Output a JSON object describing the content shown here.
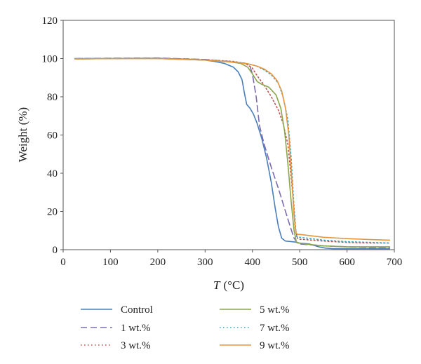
{
  "chart_data": {
    "type": "line",
    "xlabel": {
      "italic": "T",
      "rest": "(°C)"
    },
    "ylabel": "Weight (%)",
    "xlim": [
      0,
      700
    ],
    "ylim": [
      0,
      120
    ],
    "xticks": [
      0,
      100,
      200,
      300,
      400,
      500,
      600,
      700
    ],
    "yticks": [
      0,
      20,
      40,
      60,
      80,
      100,
      120
    ],
    "grid": false,
    "legend_placement": "bottom",
    "series": [
      {
        "name": "Control",
        "color": "#4a7ebb",
        "style": "solid",
        "x": [
          25,
          100,
          200,
          300,
          320,
          340,
          360,
          370,
          378,
          383,
          388,
          395,
          402,
          410,
          420,
          430,
          440,
          448,
          455,
          462,
          470,
          490,
          500,
          520,
          540,
          555,
          570,
          600,
          650,
          690
        ],
        "y": [
          99.8,
          100,
          100.2,
          99.2,
          98.5,
          97.5,
          95.5,
          93,
          89,
          82,
          76,
          74,
          71,
          66,
          58,
          48,
          35,
          22,
          12,
          6,
          4.5,
          4,
          3.5,
          3,
          1.5,
          0.8,
          0.5,
          0.5,
          0.5,
          0.5
        ]
      },
      {
        "name": "1 wt.%",
        "color": "#7d6bb0",
        "style": "dashed",
        "x": [
          25,
          100,
          200,
          300,
          350,
          370,
          385,
          395,
          400,
          408,
          415,
          425,
          440,
          455,
          470,
          480,
          488,
          495,
          500,
          550,
          600,
          650,
          690
        ],
        "y": [
          100,
          100.2,
          100.3,
          99.5,
          98.5,
          98,
          97.5,
          96,
          92,
          80,
          65,
          55,
          43,
          32,
          20,
          12,
          6,
          3.5,
          3,
          2,
          1.5,
          1.2,
          1.2
        ]
      },
      {
        "name": "3 wt.%",
        "color": "#c0504d",
        "style": "dotted",
        "x": [
          25,
          100,
          200,
          300,
          360,
          385,
          400,
          410,
          425,
          440,
          455,
          465,
          475,
          485,
          490,
          495,
          500,
          550,
          600,
          650,
          690
        ],
        "y": [
          100,
          100.1,
          100.2,
          99.5,
          98.5,
          97.5,
          95,
          91,
          86,
          80,
          73,
          66,
          55,
          30,
          12,
          6,
          5.5,
          4.5,
          3.8,
          3.5,
          3.5
        ]
      },
      {
        "name": "5 wt.%",
        "color": "#8aa64b",
        "style": "solid",
        "x": [
          25,
          100,
          200,
          300,
          350,
          375,
          390,
          400,
          410,
          420,
          435,
          450,
          460,
          468,
          475,
          482,
          488,
          493,
          497,
          510,
          550,
          600,
          650,
          690
        ],
        "y": [
          99.8,
          100,
          100,
          99.2,
          98.3,
          97.5,
          95.5,
          92,
          88,
          86.5,
          85,
          81,
          74,
          62,
          45,
          25,
          10,
          4,
          3.5,
          3,
          2,
          1.5,
          1.5,
          1.5
        ]
      },
      {
        "name": "7 wt.%",
        "color": "#3aa7c4",
        "style": "dotted",
        "x": [
          25,
          100,
          200,
          300,
          360,
          390,
          410,
          425,
          440,
          455,
          465,
          475,
          482,
          488,
          493,
          497,
          500,
          550,
          600,
          650,
          690
        ],
        "y": [
          100,
          100.1,
          100.1,
          99.3,
          98.3,
          97.3,
          96,
          94,
          91.5,
          87,
          80,
          68,
          48,
          22,
          7,
          6.5,
          6.5,
          5,
          4.2,
          3.8,
          3.5
        ]
      },
      {
        "name": "9 wt.%",
        "color": "#e8953e",
        "style": "solid",
        "x": [
          25,
          100,
          200,
          300,
          360,
          390,
          410,
          425,
          440,
          452,
          462,
          470,
          477,
          483,
          488,
          492,
          495,
          500,
          550,
          600,
          650,
          690
        ],
        "y": [
          99.8,
          100,
          100,
          99.2,
          98.2,
          97.3,
          96,
          94.5,
          92,
          88.5,
          83,
          74,
          60,
          38,
          18,
          9,
          8,
          8,
          6.5,
          5.8,
          5.3,
          5
        ]
      }
    ]
  }
}
